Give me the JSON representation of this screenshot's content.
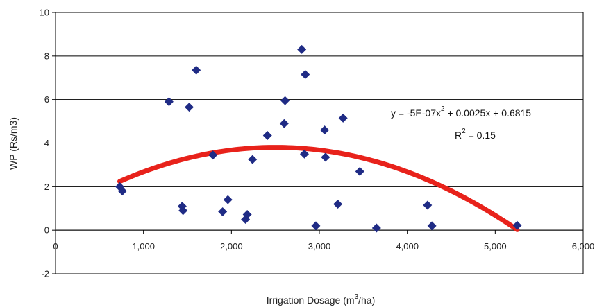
{
  "chart_data": {
    "type": "scatter",
    "xlim": [
      0,
      6000
    ],
    "ylim": [
      -2,
      10
    ],
    "x_ticks": [
      0,
      1000,
      2000,
      3000,
      4000,
      5000,
      6000
    ],
    "x_tick_labels": [
      "0",
      "1,000",
      "2,000",
      "3,000",
      "4,000",
      "5,000",
      "6,000"
    ],
    "y_ticks": [
      -2,
      0,
      2,
      4,
      6,
      8,
      10
    ],
    "y_tick_labels": [
      "-2",
      "0",
      "2",
      "4",
      "6",
      "8",
      "10"
    ],
    "grid": "horizontal",
    "ylabel": "WP (Rs/m3)",
    "xlabel": {
      "prefix": "Irrigation Dosage (m",
      "superscript": "3",
      "suffix": "/ha)"
    },
    "points": [
      {
        "x": 730,
        "y": 2.0
      },
      {
        "x": 760,
        "y": 1.8
      },
      {
        "x": 1290,
        "y": 5.9
      },
      {
        "x": 1440,
        "y": 1.1
      },
      {
        "x": 1450,
        "y": 0.9
      },
      {
        "x": 1520,
        "y": 5.65
      },
      {
        "x": 1600,
        "y": 7.35
      },
      {
        "x": 1790,
        "y": 3.45
      },
      {
        "x": 1900,
        "y": 0.85
      },
      {
        "x": 1960,
        "y": 1.4
      },
      {
        "x": 2160,
        "y": 0.5
      },
      {
        "x": 2180,
        "y": 0.72
      },
      {
        "x": 2240,
        "y": 3.25
      },
      {
        "x": 2410,
        "y": 4.35
      },
      {
        "x": 2600,
        "y": 4.9
      },
      {
        "x": 2610,
        "y": 5.95
      },
      {
        "x": 2800,
        "y": 8.3
      },
      {
        "x": 2830,
        "y": 3.5
      },
      {
        "x": 2840,
        "y": 7.15
      },
      {
        "x": 2960,
        "y": 0.2
      },
      {
        "x": 3060,
        "y": 4.6
      },
      {
        "x": 3070,
        "y": 3.35
      },
      {
        "x": 3210,
        "y": 1.2
      },
      {
        "x": 3270,
        "y": 5.15
      },
      {
        "x": 3460,
        "y": 2.7
      },
      {
        "x": 3650,
        "y": 0.1
      },
      {
        "x": 4230,
        "y": 1.15
      },
      {
        "x": 4280,
        "y": 0.2
      },
      {
        "x": 5250,
        "y": 0.22
      }
    ],
    "trendline": {
      "type": "polynomial",
      "color": "#e8221b",
      "a": -5e-07,
      "b": 0.0025,
      "c": 0.6815,
      "x_range": [
        730,
        5250
      ]
    },
    "marker_color": "#1f2b85",
    "equation": {
      "part1": "y = -5E-07x",
      "sup1": "2",
      "part2": " + 0.0025x + 0.6815"
    },
    "r_squared": {
      "prefix": "R",
      "sup": "2",
      "suffix": " = 0.15"
    }
  }
}
